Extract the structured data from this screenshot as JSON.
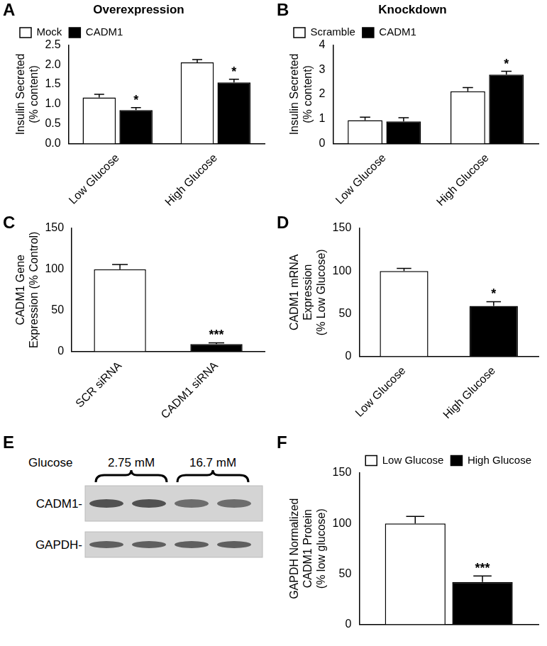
{
  "chart_data": [
    {
      "panel": "A",
      "type": "bar",
      "title": "Overexpression",
      "y_label": [
        "Insulin Secreted",
        "(% content)"
      ],
      "categories": [
        "Low Glucose",
        "High Glucose"
      ],
      "series": [
        {
          "name": "Mock",
          "color": "#ffffff",
          "values": [
            1.17,
            2.06
          ],
          "error": [
            0.08,
            0.07
          ],
          "significance": [
            null,
            null
          ]
        },
        {
          "name": "CADM1",
          "color": "#000000",
          "values": [
            0.85,
            1.55
          ],
          "error": [
            0.06,
            0.08
          ],
          "significance": [
            "*",
            "*"
          ]
        }
      ],
      "ylim": [
        0,
        2.5
      ],
      "yticks": [
        {
          "value": 0,
          "label": "0.0"
        },
        0.5,
        {
          "value": 1,
          "label": "1.0"
        },
        1.5,
        {
          "value": 2,
          "label": "2.0"
        },
        2.5
      ],
      "grid": false,
      "legend": "top-left"
    },
    {
      "panel": "B",
      "type": "bar",
      "title": "Knockdown",
      "y_label": [
        "Insulin Secreted",
        "(% content)"
      ],
      "categories": [
        "Low Glucose",
        "High Glucose"
      ],
      "series": [
        {
          "name": "Scramble",
          "color": "#ffffff",
          "values": [
            0.95,
            2.12
          ],
          "error": [
            0.12,
            0.15
          ],
          "significance": [
            null,
            null
          ]
        },
        {
          "name": "CADM1",
          "color": "#000000",
          "values": [
            0.9,
            2.8
          ],
          "error": [
            0.15,
            0.13
          ],
          "significance": [
            null,
            "*"
          ]
        }
      ],
      "ylim": [
        0,
        4
      ],
      "yticks": [
        0,
        1,
        2,
        3,
        4
      ],
      "grid": false,
      "legend": "top-left"
    },
    {
      "panel": "C",
      "type": "bar",
      "y_label": [
        "CADM1 Gene",
        "Expression (% Control)"
      ],
      "categories": [
        "SCR siRNA",
        "CADM1 siRNA"
      ],
      "values": [
        100,
        9
      ],
      "error": [
        6,
        1.5
      ],
      "significance": [
        null,
        "***"
      ],
      "colors": [
        "#ffffff",
        "#000000"
      ],
      "ylim": [
        0,
        150
      ],
      "yticks": [
        0,
        50,
        100,
        150
      ],
      "grid": false
    },
    {
      "panel": "D",
      "type": "bar",
      "y_label": [
        "CADM1 mRNA",
        "Expression",
        "(% Low Glucose)"
      ],
      "categories": [
        "Low Glucose",
        "High Glucose"
      ],
      "values": [
        100,
        59
      ],
      "error": [
        3,
        5
      ],
      "significance": [
        null,
        "*"
      ],
      "colors": [
        "#ffffff",
        "#000000"
      ],
      "ylim": [
        0,
        150
      ],
      "yticks": [
        0,
        50,
        100,
        150
      ],
      "grid": false
    },
    {
      "panel": "F",
      "type": "bar",
      "y_label": [
        "GAPDH Normalized",
        "CADM1 Protein",
        "(% low glucose)"
      ],
      "categories": [
        null
      ],
      "series": [
        {
          "name": "Low Glucose",
          "color": "#ffffff",
          "values": [
            100
          ],
          "error": [
            7
          ],
          "significance": [
            null
          ]
        },
        {
          "name": "High Glucose",
          "color": "#000000",
          "values": [
            42
          ],
          "error": [
            6
          ],
          "significance": [
            "***"
          ]
        }
      ],
      "ylim": [
        0,
        150
      ],
      "yticks": [
        0,
        50,
        100,
        150
      ],
      "grid": false,
      "legend": "top-right"
    }
  ],
  "blot": {
    "panel": "E",
    "label": "Glucose",
    "lanes": [
      "2.75 mM",
      "16.7 mM"
    ],
    "bands": [
      "CADM1-",
      "GAPDH-"
    ]
  }
}
